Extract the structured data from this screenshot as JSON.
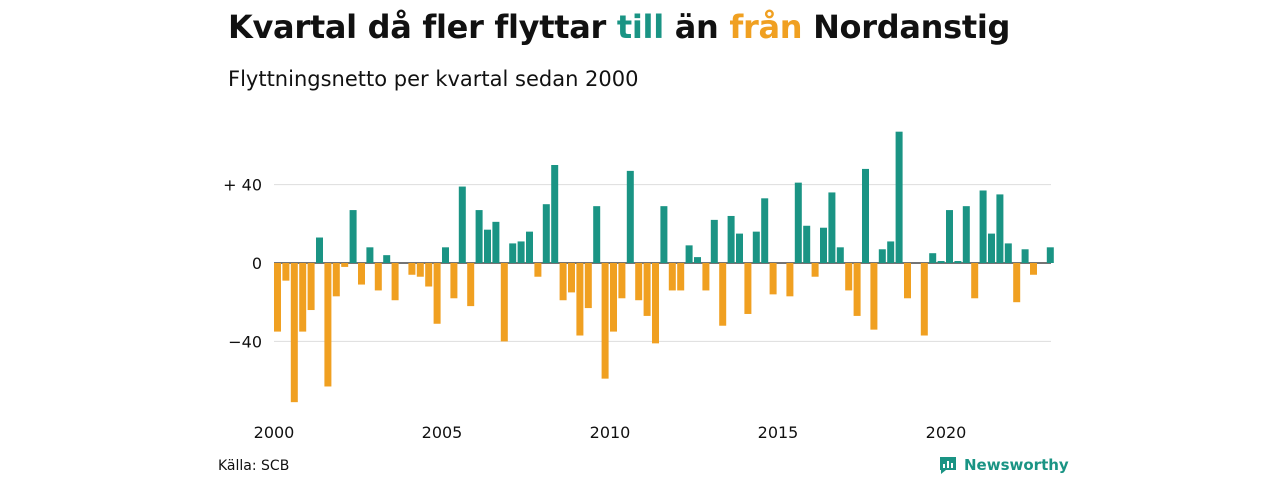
{
  "title": {
    "part1": "Kvartal då fler flyttar ",
    "till": "till",
    "part2": " än ",
    "fran": "från",
    "part3": " Nordanstig"
  },
  "subtitle": "Flyttningsnetto per kvartal sedan 2000",
  "source": "Källa: SCB",
  "brand": "Newsworthy",
  "colors": {
    "positive": "#1a9484",
    "negative": "#f0a021",
    "grid": "#dddddd"
  },
  "chart_data": {
    "type": "bar",
    "title": "Kvartal då fler flyttar till än från Nordanstig",
    "subtitle": "Flyttningsnetto per kvartal sedan 2000",
    "x_start": "2000 Q1",
    "x_ticks": [
      "2000",
      "2005",
      "2010",
      "2015",
      "2020"
    ],
    "y_ticks": [
      40,
      0,
      -40
    ],
    "y_tick_labels": [
      "+ 40",
      "0",
      "−40"
    ],
    "ylim": [
      -72,
      68
    ],
    "grid": true,
    "values": [
      -35,
      -9,
      -71,
      -35,
      -24,
      13,
      -63,
      -17,
      -2,
      27,
      -11,
      8,
      -14,
      4,
      -19,
      0,
      -6,
      -7,
      -12,
      -31,
      8,
      -18,
      39,
      -22,
      27,
      17,
      21,
      -40,
      10,
      11,
      16,
      -7,
      30,
      50,
      -19,
      -15,
      -37,
      -23,
      29,
      -59,
      -35,
      -18,
      47,
      -19,
      -27,
      -41,
      29,
      -14,
      -14,
      9,
      3,
      -14,
      22,
      -32,
      24,
      15,
      -26,
      16,
      33,
      -16,
      0,
      -17,
      41,
      19,
      -7,
      18,
      36,
      8,
      -14,
      -27,
      48,
      -34,
      7,
      11,
      67,
      -18,
      0,
      -37,
      5,
      1,
      27,
      1,
      29,
      -18,
      37,
      15,
      35,
      10,
      -20,
      7,
      -6,
      0,
      8
    ]
  }
}
